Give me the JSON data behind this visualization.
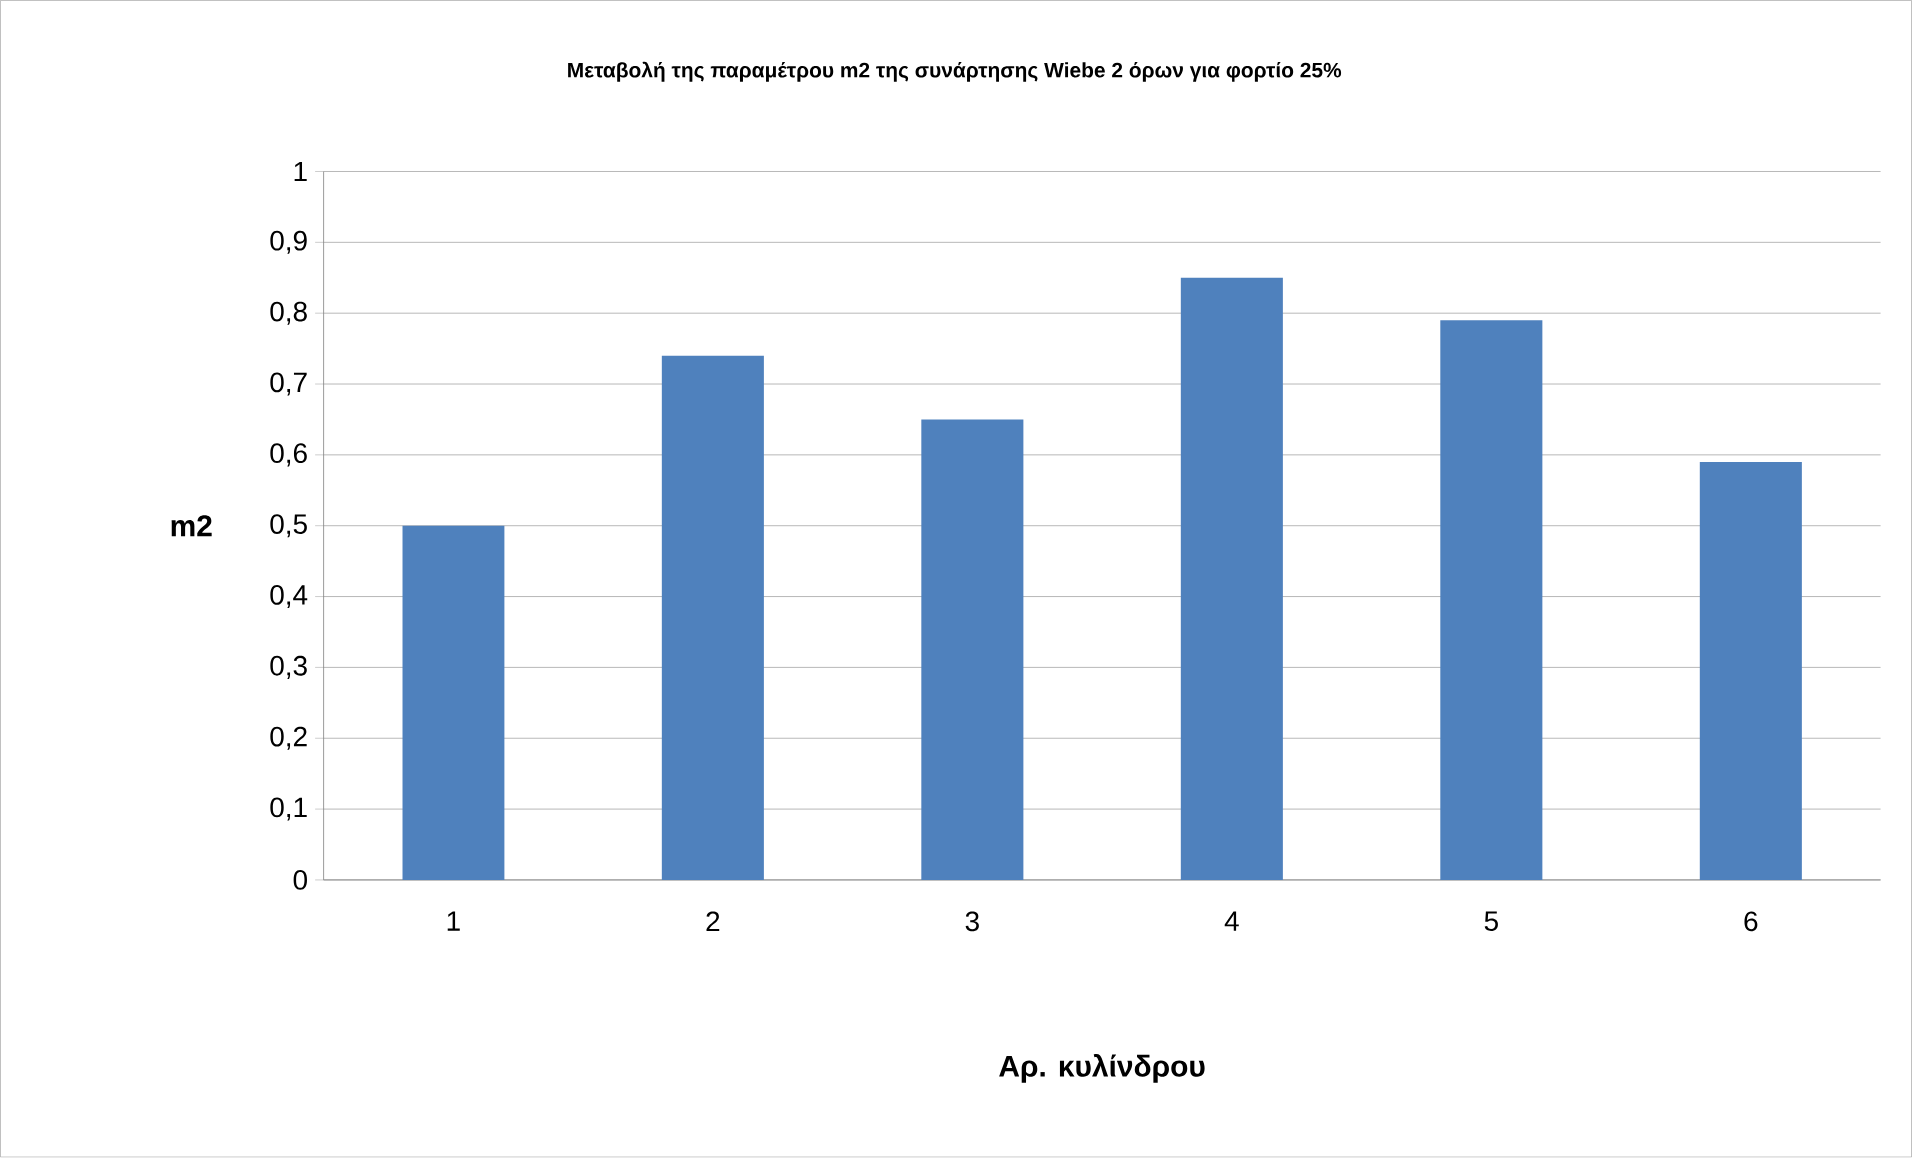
{
  "chart_data": {
    "type": "bar",
    "title": "Μεταβολή της παραμέτρου m2 της συνάρτησης Wiebe 2 όρων για φορτίο 25%",
    "xlabel": "Αρ. κυλίνδρου",
    "ylabel": "m2",
    "categories": [
      "1",
      "2",
      "3",
      "4",
      "5",
      "6"
    ],
    "values": [
      0.5,
      0.74,
      0.65,
      0.85,
      0.79,
      0.59
    ],
    "color": "#4f81bd",
    "ylim": [
      0,
      1
    ],
    "yticks": [
      0,
      {
        "value": 0.1,
        "label": "0,1"
      },
      {
        "value": 0.2,
        "label": "0,2"
      },
      {
        "value": 0.3,
        "label": "0,3"
      },
      {
        "value": 0.4,
        "label": "0,4"
      },
      {
        "value": 0.5,
        "label": "0,5"
      },
      {
        "value": 0.6,
        "label": "0,6"
      },
      {
        "value": 0.7,
        "label": "0,7"
      },
      {
        "value": 0.8,
        "label": "0,8"
      },
      {
        "value": 0.9,
        "label": "0,9"
      },
      1
    ],
    "grid": "y"
  }
}
